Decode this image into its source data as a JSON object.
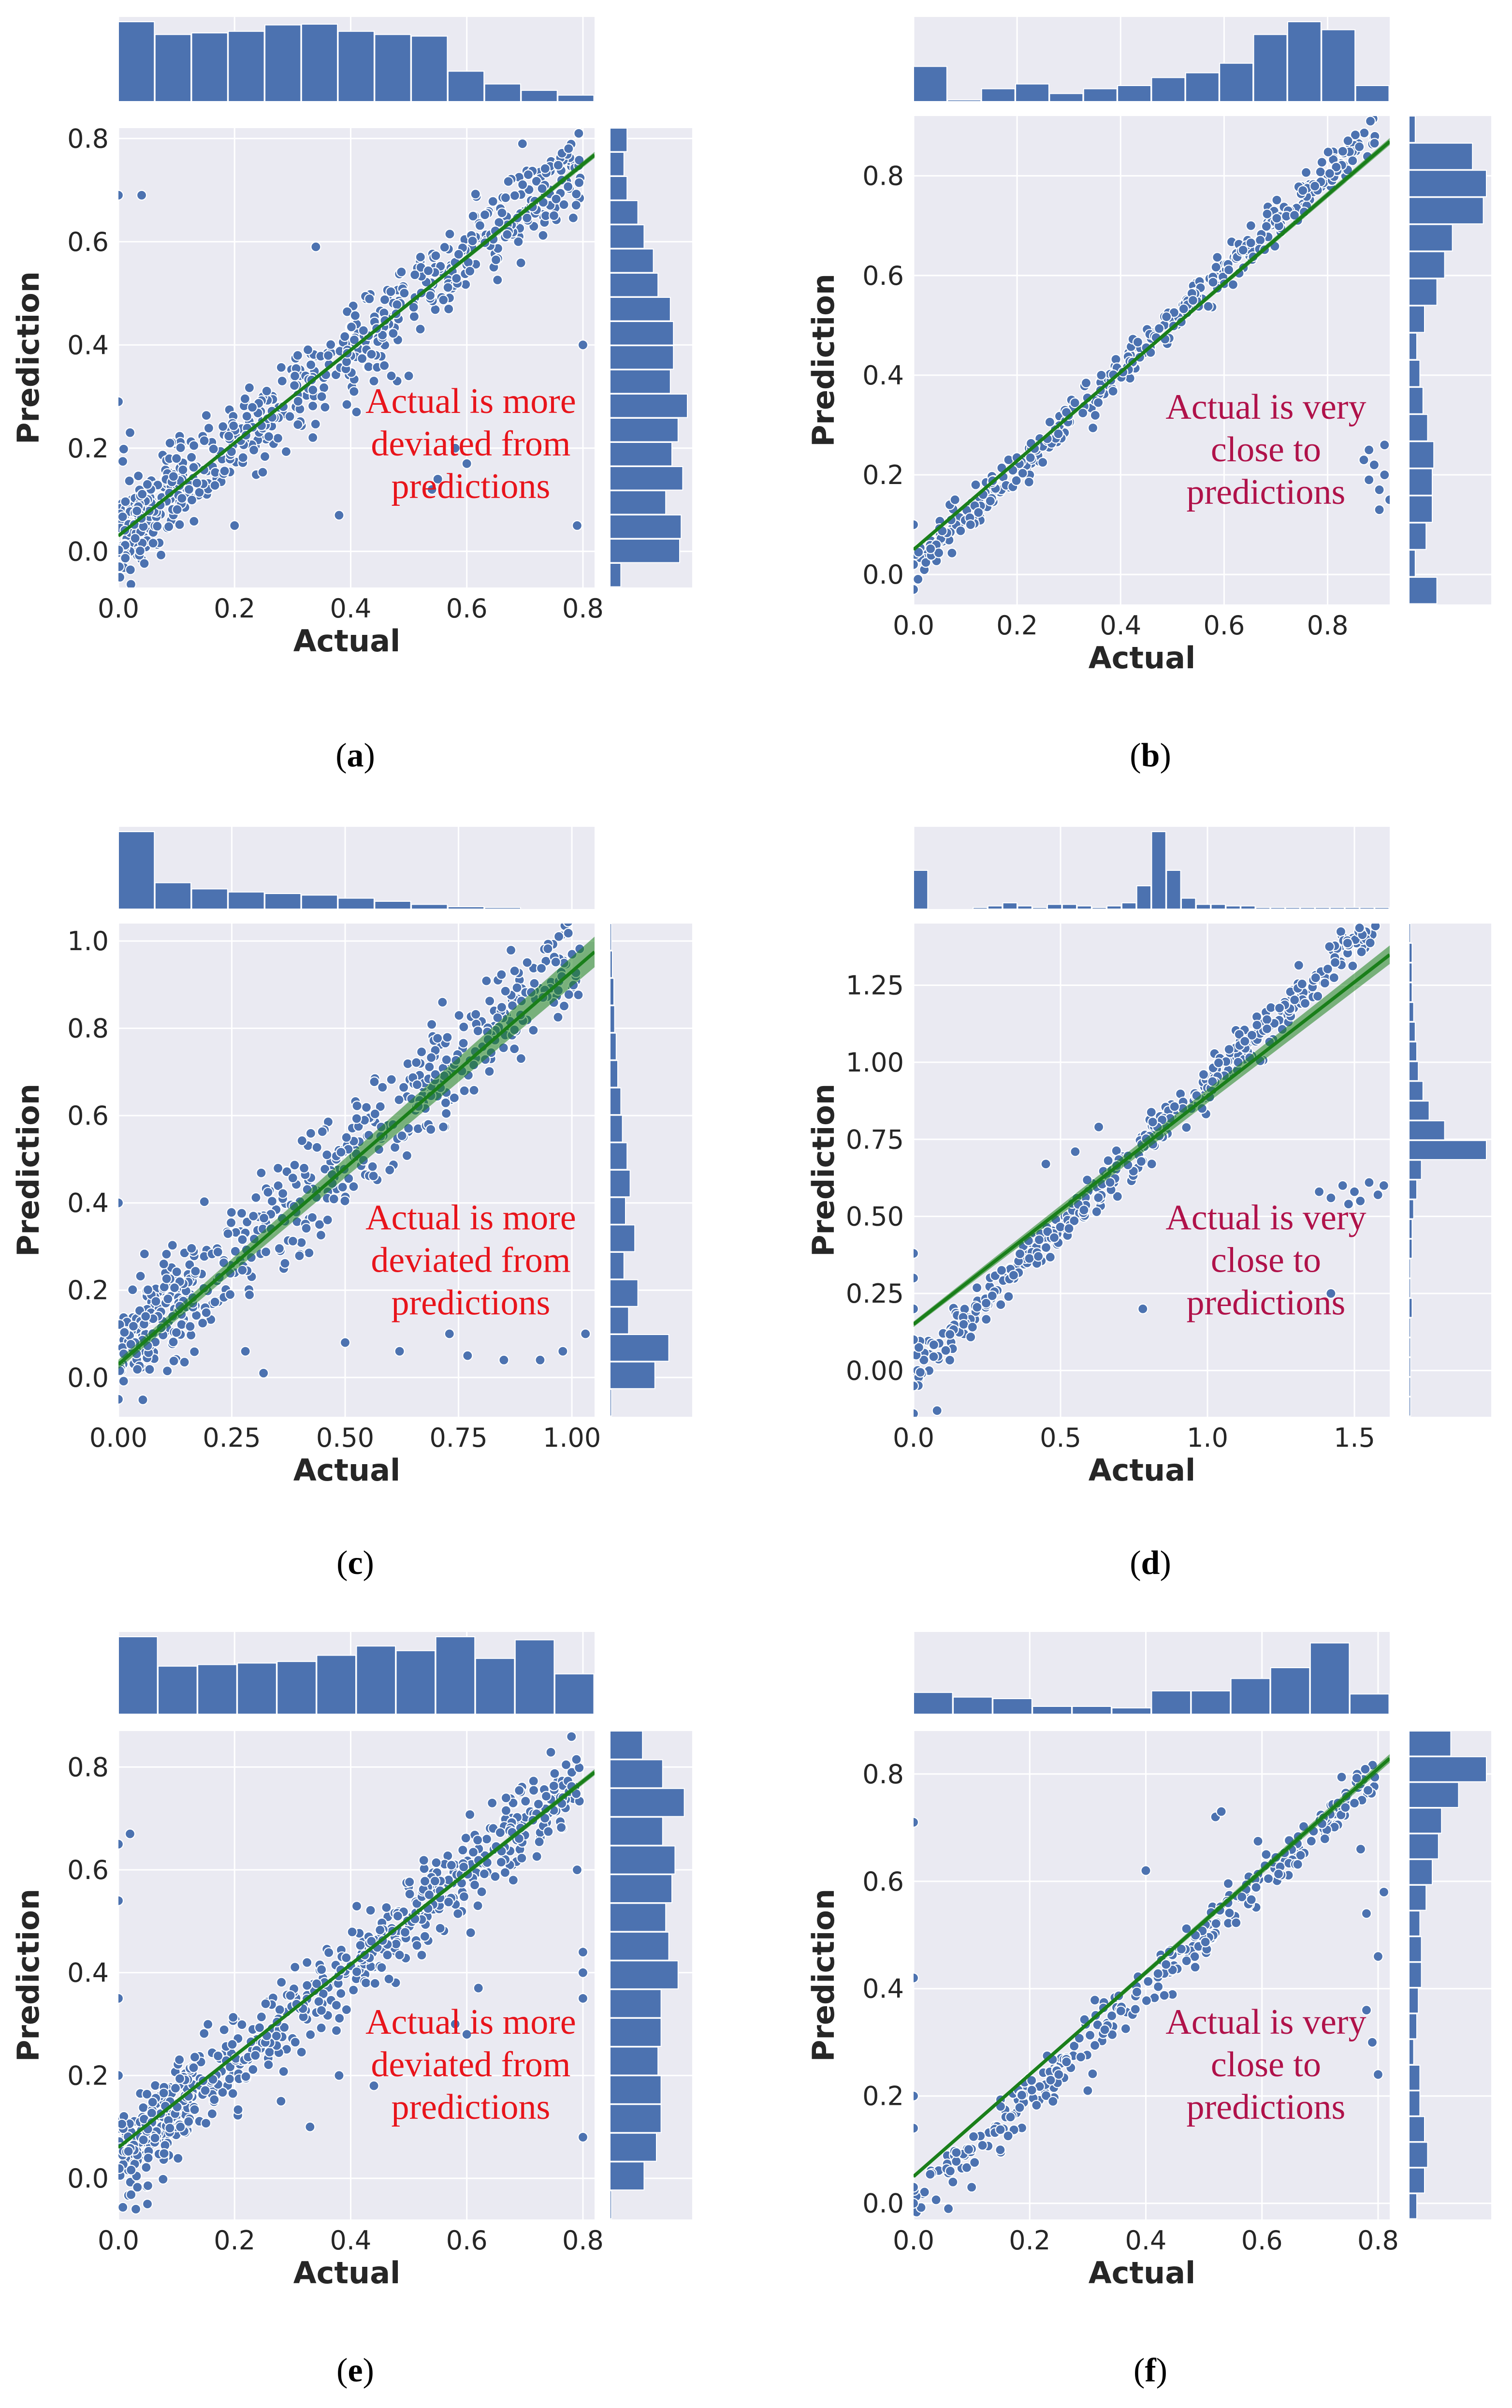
{
  "figure": {
    "caption_style": "bold letter in parentheses"
  },
  "colors": {
    "panel_background": "#eaeaf2",
    "grid": "#ffffff",
    "points": "#4c72b0",
    "histogram": "#4c72b0",
    "regression_line": "#1a7f1a",
    "annotation_red": "#e8141b",
    "annotation_crimson": "#b0124a"
  },
  "chart_data": [
    {
      "id": "a",
      "caption": "a",
      "type": "scatter",
      "xlabel": "Actual",
      "ylabel": "Prediction",
      "xlim": [
        0.0,
        0.82
      ],
      "ylim": [
        -0.07,
        0.82
      ],
      "xticks": [
        0.0,
        0.2,
        0.4,
        0.6,
        0.8
      ],
      "xtick_labels": [
        "0.0",
        "0.2",
        "0.4",
        "0.6",
        "0.8"
      ],
      "yticks": [
        0.0,
        0.2,
        0.4,
        0.6,
        0.8
      ],
      "ytick_labels": [
        "0.0",
        "0.2",
        "0.4",
        "0.6",
        "0.8"
      ],
      "regression": {
        "slope": 0.9,
        "intercept": 0.03,
        "band": 0.006
      },
      "annotation": {
        "lines": [
          "Actual is more",
          "deviated from",
          "predictions"
        ],
        "color": "#e8141b"
      },
      "marginal_x": [
        1.0,
        0.84,
        0.86,
        0.88,
        0.96,
        0.97,
        0.88,
        0.84,
        0.82,
        0.38,
        0.22,
        0.14,
        0.08
      ],
      "marginal_y": [
        0.14,
        0.9,
        0.92,
        0.72,
        0.94,
        0.8,
        0.88,
        1.0,
        0.78,
        0.82,
        0.82,
        0.78,
        0.62,
        0.56,
        0.44,
        0.36,
        0.22,
        0.18,
        0.22
      ],
      "points": [
        [
          0.0,
          0.69
        ],
        [
          0.04,
          0.69
        ],
        [
          0.34,
          0.59
        ],
        [
          0.79,
          0.05
        ],
        [
          0.8,
          0.4
        ],
        [
          0.5,
          0.34
        ],
        [
          0.48,
          0.33
        ],
        [
          0.38,
          0.07
        ],
        [
          0.55,
          0.14
        ],
        [
          0.54,
          0.12
        ],
        [
          0.58,
          0.2
        ],
        [
          0.6,
          0.17
        ],
        [
          0.41,
          0.27
        ],
        [
          0.0,
          0.29
        ],
        [
          0.02,
          0.23
        ],
        [
          0.47,
          0.34
        ],
        [
          0.44,
          0.33
        ],
        [
          0.2,
          0.05
        ],
        [
          0.1,
          0.18
        ]
      ],
      "scatter_params": {
        "n": 650,
        "noise": 0.045,
        "offset": 0.03,
        "slope": 0.91,
        "seed": 11,
        "cluster_low": true
      }
    },
    {
      "id": "b",
      "caption": "b",
      "type": "scatter",
      "xlabel": "Actual",
      "ylabel": "Prediction",
      "xlim": [
        0.0,
        0.92
      ],
      "ylim": [
        -0.06,
        0.92
      ],
      "xticks": [
        0.0,
        0.2,
        0.4,
        0.6,
        0.8
      ],
      "xtick_labels": [
        "0.0",
        "0.2",
        "0.4",
        "0.6",
        "0.8"
      ],
      "yticks": [
        0.0,
        0.2,
        0.4,
        0.6,
        0.8
      ],
      "ytick_labels": [
        "0.0",
        "0.2",
        "0.4",
        "0.6",
        "0.8"
      ],
      "regression": {
        "slope": 0.89,
        "intercept": 0.05,
        "band": 0.007
      },
      "annotation": {
        "lines": [
          "Actual is very",
          "close to",
          "predictions"
        ],
        "color": "#b0124a"
      },
      "marginal_x": [
        0.44,
        0.02,
        0.16,
        0.22,
        0.1,
        0.16,
        0.2,
        0.3,
        0.36,
        0.48,
        0.84,
        1.0,
        0.9,
        0.2
      ],
      "marginal_y": [
        0.36,
        0.08,
        0.22,
        0.3,
        0.3,
        0.32,
        0.24,
        0.18,
        0.14,
        0.1,
        0.2,
        0.36,
        0.46,
        0.56,
        0.96,
        1.0,
        0.82,
        0.08
      ],
      "points": [
        [
          0.0,
          0.02
        ],
        [
          0.0,
          -0.03
        ],
        [
          0.0,
          0.1
        ],
        [
          0.11,
          0.1
        ],
        [
          0.91,
          0.2
        ],
        [
          0.9,
          0.17
        ],
        [
          0.89,
          0.22
        ],
        [
          0.92,
          0.15
        ],
        [
          0.88,
          0.19
        ],
        [
          0.91,
          0.26
        ],
        [
          0.87,
          0.23
        ],
        [
          0.9,
          0.13
        ],
        [
          0.88,
          0.25
        ],
        [
          0.12,
          0.18
        ],
        [
          0.08,
          0.15
        ]
      ],
      "scatter_params": {
        "n": 420,
        "noise": 0.018,
        "offset": 0.02,
        "slope": 0.98,
        "seed": 23,
        "cluster_low": false
      }
    },
    {
      "id": "c",
      "caption": "c",
      "type": "scatter",
      "xlabel": "Actual",
      "ylabel": "Prediction",
      "xlim": [
        0.0,
        1.05
      ],
      "ylim": [
        -0.09,
        1.04
      ],
      "xticks": [
        0.0,
        0.25,
        0.5,
        0.75,
        1.0
      ],
      "xtick_labels": [
        "0.00",
        "0.25",
        "0.50",
        "0.75",
        "1.00"
      ],
      "yticks": [
        0.0,
        0.2,
        0.4,
        0.6,
        0.8,
        1.0
      ],
      "ytick_labels": [
        "0.0",
        "0.2",
        "0.4",
        "0.6",
        "0.8",
        "1.0"
      ],
      "regression": {
        "slope": 0.9,
        "intercept": 0.03,
        "band": 0.035
      },
      "annotation": {
        "lines": [
          "Actual is more",
          "deviated from",
          "predictions"
        ],
        "color": "#e8141b"
      },
      "marginal_x": [
        1.0,
        0.34,
        0.26,
        0.22,
        0.2,
        0.18,
        0.14,
        0.1,
        0.06,
        0.03,
        0.02,
        0.0,
        0.0
      ],
      "marginal_y": [
        0.02,
        0.58,
        0.76,
        0.24,
        0.36,
        0.18,
        0.32,
        0.2,
        0.26,
        0.22,
        0.16,
        0.14,
        0.1,
        0.08,
        0.06,
        0.05,
        0.03,
        0.02
      ],
      "points": [
        [
          0.0,
          0.4
        ],
        [
          0.0,
          -0.05
        ],
        [
          0.32,
          0.01
        ],
        [
          0.28,
          0.06
        ],
        [
          0.5,
          0.08
        ],
        [
          0.62,
          0.06
        ],
        [
          0.77,
          0.05
        ],
        [
          0.85,
          0.04
        ],
        [
          0.93,
          0.04
        ],
        [
          0.98,
          0.06
        ],
        [
          1.03,
          0.1
        ],
        [
          0.73,
          0.1
        ],
        [
          0.1,
          0.26
        ],
        [
          0.06,
          0.14
        ]
      ],
      "scatter_params": {
        "n": 560,
        "noise": 0.06,
        "offset": 0.05,
        "slope": 0.9,
        "seed": 37,
        "cluster_low": true
      }
    },
    {
      "id": "d",
      "caption": "d",
      "type": "scatter",
      "xlabel": "Actual",
      "ylabel": "Prediction",
      "xlim": [
        0.0,
        1.62
      ],
      "ylim": [
        -0.15,
        1.45
      ],
      "xticks": [
        0.0,
        0.5,
        1.0,
        1.5
      ],
      "xtick_labels": [
        "0.0",
        "0.5",
        "1.0",
        "1.5"
      ],
      "yticks": [
        0.0,
        0.25,
        0.5,
        0.75,
        1.0,
        1.25
      ],
      "ytick_labels": [
        "0.00",
        "0.25",
        "0.50",
        "0.75",
        "1.00",
        "1.25"
      ],
      "regression": {
        "slope": 0.74,
        "intercept": 0.15,
        "band": 0.03
      },
      "annotation": {
        "lines": [
          "Actual is very",
          "close to",
          "predictions"
        ],
        "color": "#b0124a"
      },
      "marginal_x": [
        0.5,
        0.0,
        0.0,
        0.0,
        0.02,
        0.04,
        0.08,
        0.04,
        0.02,
        0.06,
        0.06,
        0.04,
        0.02,
        0.04,
        0.08,
        0.3,
        1.0,
        0.5,
        0.14,
        0.06,
        0.06,
        0.04,
        0.04,
        0.02,
        0.02,
        0.02,
        0.02,
        0.02,
        0.02,
        0.02,
        0.02,
        0.02
      ],
      "marginal_y": [
        0.02,
        0.02,
        0.02,
        0.02,
        0.02,
        0.04,
        0.02,
        0.02,
        0.04,
        0.04,
        0.06,
        0.1,
        0.16,
        1.0,
        0.46,
        0.26,
        0.18,
        0.12,
        0.1,
        0.08,
        0.06,
        0.04,
        0.04,
        0.04,
        0.02
      ],
      "points": [
        [
          0.78,
          0.2
        ],
        [
          0.08,
          -0.13
        ],
        [
          0.0,
          0.38
        ],
        [
          0.0,
          0.3
        ],
        [
          0.0,
          0.2
        ],
        [
          0.0,
          0.1
        ],
        [
          0.0,
          -0.05
        ],
        [
          0.0,
          -0.14
        ],
        [
          0.63,
          0.79
        ],
        [
          0.55,
          0.71
        ],
        [
          0.45,
          0.67
        ],
        [
          1.42,
          0.25
        ],
        [
          1.38,
          0.58
        ],
        [
          1.42,
          0.56
        ],
        [
          1.46,
          0.6
        ],
        [
          1.5,
          0.58
        ],
        [
          1.55,
          0.61
        ],
        [
          1.6,
          0.6
        ],
        [
          1.48,
          0.54
        ],
        [
          1.52,
          0.55
        ],
        [
          1.58,
          0.57
        ]
      ],
      "scatter_params": {
        "n": 430,
        "noise": 0.035,
        "offset": 0.0,
        "slope": 0.93,
        "seed": 53,
        "cluster_low": false
      }
    },
    {
      "id": "e",
      "caption": "e",
      "type": "scatter",
      "xlabel": "Actual",
      "ylabel": "Prediction",
      "xlim": [
        0.0,
        0.82
      ],
      "ylim": [
        -0.08,
        0.87
      ],
      "xticks": [
        0.0,
        0.2,
        0.4,
        0.6,
        0.8
      ],
      "xtick_labels": [
        "0.0",
        "0.2",
        "0.4",
        "0.6",
        "0.8"
      ],
      "yticks": [
        0.0,
        0.2,
        0.4,
        0.6,
        0.8
      ],
      "ytick_labels": [
        "0.0",
        "0.2",
        "0.4",
        "0.6",
        "0.8"
      ],
      "regression": {
        "slope": 0.89,
        "intercept": 0.06,
        "band": 0.006
      },
      "annotation": {
        "lines": [
          "Actual is more",
          "deviated from",
          "predictions"
        ],
        "color": "#e8141b"
      },
      "marginal_x": [
        1.0,
        0.62,
        0.64,
        0.66,
        0.68,
        0.76,
        0.88,
        0.82,
        1.0,
        0.72,
        0.96,
        0.52
      ],
      "marginal_y": [
        0.02,
        0.44,
        0.6,
        0.66,
        0.66,
        0.62,
        0.66,
        0.66,
        0.88,
        0.76,
        0.72,
        0.8,
        0.84,
        0.68,
        0.96,
        0.68,
        0.42
      ],
      "points": [
        [
          0.0,
          0.65
        ],
        [
          0.02,
          0.67
        ],
        [
          0.0,
          0.54
        ],
        [
          0.0,
          0.35
        ],
        [
          0.0,
          0.2
        ],
        [
          0.8,
          0.44
        ],
        [
          0.8,
          0.4
        ],
        [
          0.8,
          0.08
        ],
        [
          0.79,
          0.6
        ],
        [
          0.8,
          0.35
        ],
        [
          0.28,
          0.15
        ],
        [
          0.38,
          0.2
        ],
        [
          0.33,
          0.1
        ],
        [
          0.44,
          0.18
        ],
        [
          0.58,
          0.3
        ],
        [
          0.62,
          0.37
        ],
        [
          0.6,
          0.28
        ],
        [
          0.68,
          0.58
        ],
        [
          0.03,
          -0.06
        ],
        [
          0.05,
          -0.05
        ]
      ],
      "scatter_params": {
        "n": 640,
        "noise": 0.04,
        "offset": 0.04,
        "slope": 0.93,
        "seed": 71,
        "cluster_low": true
      }
    },
    {
      "id": "f",
      "caption": "f",
      "type": "scatter",
      "xlabel": "Actual",
      "ylabel": "Prediction",
      "xlim": [
        0.0,
        0.82
      ],
      "ylim": [
        -0.03,
        0.88
      ],
      "xticks": [
        0.0,
        0.2,
        0.4,
        0.6,
        0.8
      ],
      "xtick_labels": [
        "0.0",
        "0.2",
        "0.4",
        "0.6",
        "0.8"
      ],
      "yticks": [
        0.0,
        0.2,
        0.4,
        0.6,
        0.8
      ],
      "ytick_labels": [
        "0.0",
        "0.2",
        "0.4",
        "0.6",
        "0.8"
      ],
      "regression": {
        "slope": 0.95,
        "intercept": 0.05,
        "band": 0.008
      },
      "annotation": {
        "lines": [
          "Actual is very",
          "close to",
          "predictions"
        ],
        "color": "#b0124a"
      },
      "marginal_x": [
        0.28,
        0.22,
        0.2,
        0.1,
        0.1,
        0.08,
        0.3,
        0.3,
        0.46,
        0.6,
        0.92,
        0.26
      ],
      "marginal_y": [
        0.1,
        0.2,
        0.24,
        0.2,
        0.14,
        0.14,
        0.06,
        0.1,
        0.12,
        0.16,
        0.16,
        0.14,
        0.22,
        0.3,
        0.38,
        0.42,
        0.64,
        1.0,
        0.54
      ],
      "points": [
        [
          0.0,
          0.71
        ],
        [
          0.0,
          0.42
        ],
        [
          0.0,
          0.2
        ],
        [
          0.0,
          0.14
        ],
        [
          0.0,
          0.03
        ],
        [
          0.0,
          0.0
        ],
        [
          0.4,
          0.62
        ],
        [
          0.52,
          0.72
        ],
        [
          0.53,
          0.73
        ],
        [
          0.25,
          0.24
        ],
        [
          0.24,
          0.19
        ],
        [
          0.3,
          0.21
        ],
        [
          0.8,
          0.24
        ],
        [
          0.79,
          0.3
        ],
        [
          0.78,
          0.36
        ],
        [
          0.77,
          0.66
        ],
        [
          0.78,
          0.54
        ],
        [
          0.8,
          0.46
        ],
        [
          0.81,
          0.58
        ],
        [
          0.06,
          -0.01
        ],
        [
          0.1,
          0.03
        ]
      ],
      "scatter_params": {
        "n": 300,
        "noise": 0.022,
        "offset": 0.0,
        "slope": 1.0,
        "seed": 89,
        "cluster_low": false
      }
    }
  ]
}
